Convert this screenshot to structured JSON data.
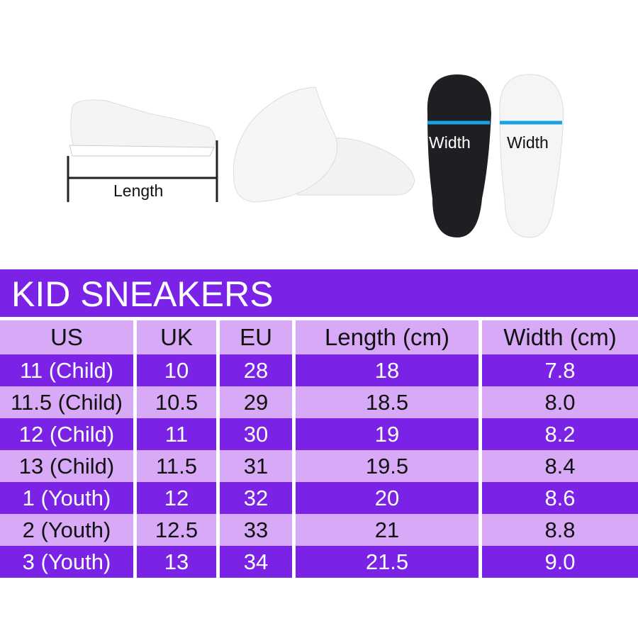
{
  "images": {
    "length_label": "Length",
    "width_label_left": "Width",
    "width_label_right": "Width"
  },
  "title": "KID SNEAKERS",
  "colors": {
    "dark_row": "#7a22e6",
    "light_row": "#d8a9f6",
    "measure_arrow": "#1aa3e0"
  },
  "table": {
    "headers": [
      "US",
      "UK",
      "EU",
      "Length (cm)",
      "Width (cm)"
    ],
    "rows": [
      [
        "11 (Child)",
        "10",
        "28",
        "18",
        "7.8"
      ],
      [
        "11.5 (Child)",
        "10.5",
        "29",
        "18.5",
        "8.0"
      ],
      [
        "12 (Child)",
        "11",
        "30",
        "19",
        "8.2"
      ],
      [
        "13 (Child)",
        "11.5",
        "31",
        "19.5",
        "8.4"
      ],
      [
        "1 (Youth)",
        "12",
        "32",
        "20",
        "8.6"
      ],
      [
        "2 (Youth)",
        "12.5",
        "33",
        "21",
        "8.8"
      ],
      [
        "3 (Youth)",
        "13",
        "34",
        "21.5",
        "9.0"
      ]
    ]
  }
}
